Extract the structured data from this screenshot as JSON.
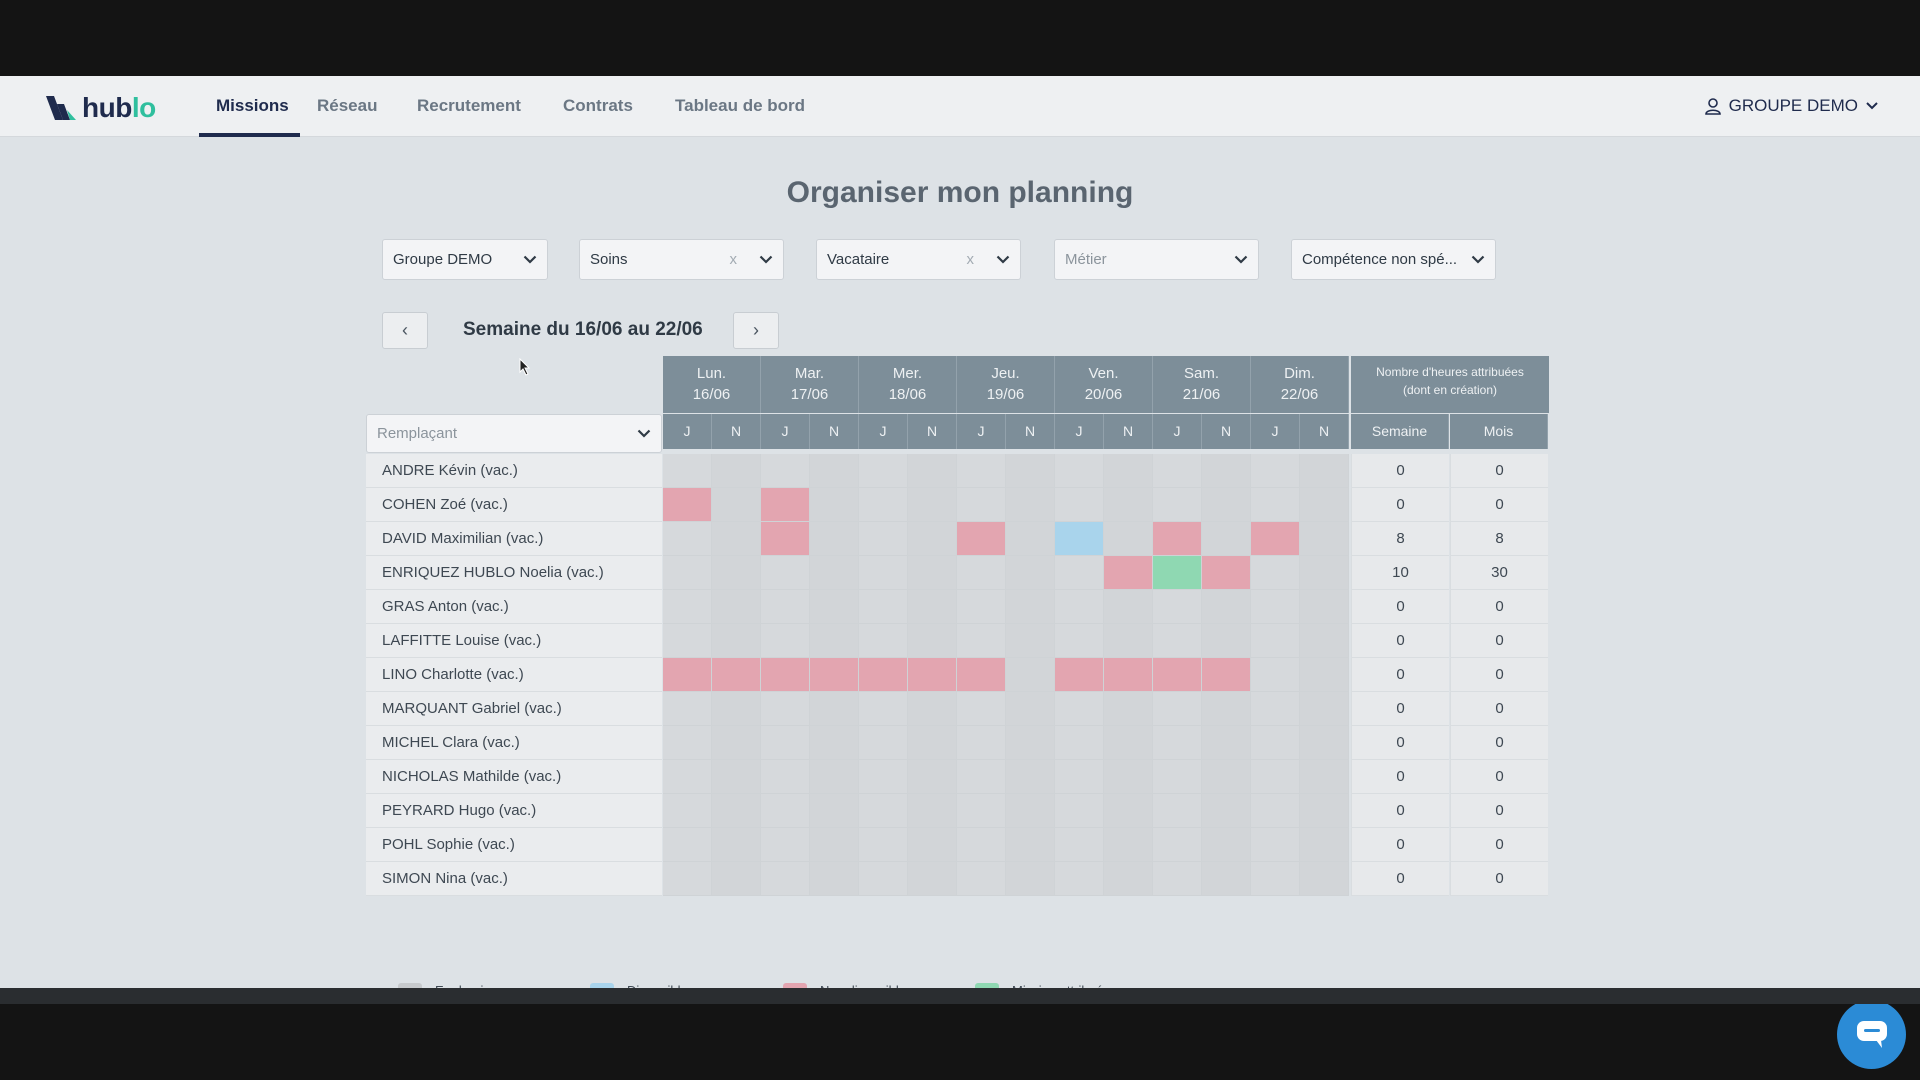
{
  "colors": {
    "dernier_recours": "#c7cacd",
    "disponible": "#a9d4ec",
    "non_disponible": "#e3a5b0",
    "mission_attribuee": "#8fd8b2",
    "primary": "#1f2b4d",
    "accent": "#2fbf9e",
    "chat": "#2b8bd6"
  },
  "logo": {
    "part1": "hub",
    "part2": "lo"
  },
  "nav": {
    "items": [
      {
        "label": "Missions",
        "active": true
      },
      {
        "label": "Réseau"
      },
      {
        "label": "Recrutement"
      },
      {
        "label": "Contrats"
      },
      {
        "label": "Tableau de bord"
      }
    ],
    "user": "GROUPE DEMO",
    "user_icon": "user-icon"
  },
  "page": {
    "title": "Organiser mon planning"
  },
  "filters": [
    {
      "value": "Groupe DEMO",
      "clearable": false,
      "placeholder": false
    },
    {
      "value": "Soins",
      "clearable": true,
      "placeholder": false
    },
    {
      "value": "Vacataire",
      "clearable": true,
      "placeholder": false
    },
    {
      "value": "Métier",
      "clearable": false,
      "placeholder": true
    },
    {
      "value": "Compétence non spé...",
      "clearable": false,
      "placeholder": false
    }
  ],
  "filter_clear_glyph": "x",
  "week": {
    "label": "Semaine du 16/06 au 22/06",
    "prev_icon": "‹",
    "next_icon": "›"
  },
  "table": {
    "days": [
      {
        "name": "Lun.",
        "date": "16/06"
      },
      {
        "name": "Mar.",
        "date": "17/06"
      },
      {
        "name": "Mer.",
        "date": "18/06"
      },
      {
        "name": "Jeu.",
        "date": "19/06"
      },
      {
        "name": "Ven.",
        "date": "20/06"
      },
      {
        "name": "Sam.",
        "date": "21/06"
      },
      {
        "name": "Dim.",
        "date": "22/06"
      }
    ],
    "shift_labels": [
      "J",
      "N"
    ],
    "hours_header_line1": "Nombre d'heures attribuées",
    "hours_header_line2": "(dont en création)",
    "col_semaine": "Semaine",
    "col_mois": "Mois",
    "select_placeholder": "Remplaçant",
    "rows": [
      {
        "name": "ANDRE Kévin (vac.)",
        "slots": "..............",
        "semaine": "0",
        "mois": "0"
      },
      {
        "name": "COHEN Zoé (vac.)",
        "slots": "U.U...........",
        "semaine": "0",
        "mois": "0"
      },
      {
        "name": "DAVID Maximilian (vac.)",
        "slots": "..U...U.D.U.U.",
        "semaine": "8",
        "mois": "8"
      },
      {
        "name": "ENRIQUEZ HUBLO Noelia (vac.)",
        "slots": ".........UMU..",
        "semaine": "10",
        "mois": "30"
      },
      {
        "name": "GRAS Anton (vac.)",
        "slots": "..............",
        "semaine": "0",
        "mois": "0"
      },
      {
        "name": "LAFFITTE Louise (vac.)",
        "slots": "..............",
        "semaine": "0",
        "mois": "0"
      },
      {
        "name": "LINO Charlotte (vac.)",
        "slots": "UUUUUUU.UUUU..",
        "semaine": "0",
        "mois": "0"
      },
      {
        "name": "MARQUANT Gabriel (vac.)",
        "slots": "..............",
        "semaine": "0",
        "mois": "0"
      },
      {
        "name": "MICHEL Clara (vac.)",
        "slots": "..............",
        "semaine": "0",
        "mois": "0"
      },
      {
        "name": "NICHOLAS Mathilde (vac.)",
        "slots": "..............",
        "semaine": "0",
        "mois": "0"
      },
      {
        "name": "PEYRARD Hugo (vac.)",
        "slots": "..............",
        "semaine": "0",
        "mois": "0"
      },
      {
        "name": "POHL Sophie (vac.)",
        "slots": "..............",
        "semaine": "0",
        "mois": "0"
      },
      {
        "name": "SIMON Nina (vac.)",
        "slots": "..............",
        "semaine": "0",
        "mois": "0"
      }
    ]
  },
  "legend": [
    {
      "label": "En dernier recours",
      "color_key": "dernier_recours"
    },
    {
      "label": "Disponible",
      "color_key": "disponible"
    },
    {
      "label": "Non disponible",
      "color_key": "non_disponible"
    },
    {
      "label": "Mission attribuée",
      "color_key": "mission_attribuee"
    }
  ]
}
